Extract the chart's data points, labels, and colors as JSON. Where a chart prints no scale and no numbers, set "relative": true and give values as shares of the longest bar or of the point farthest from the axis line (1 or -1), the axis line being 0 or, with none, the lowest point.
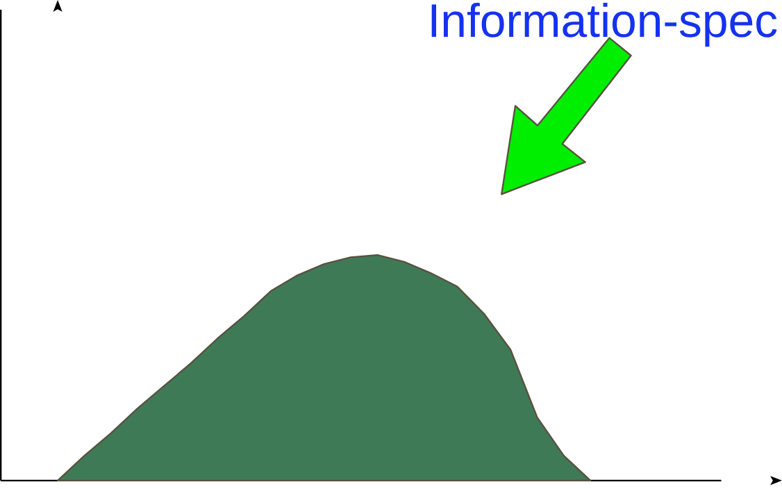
{
  "chart_data": {
    "type": "area",
    "relative": true,
    "categories": [
      null,
      null,
      null,
      null,
      null,
      null,
      null,
      null,
      null,
      null,
      null,
      null,
      null,
      null,
      null,
      null,
      null,
      null,
      null,
      null,
      null
    ],
    "values": [
      0,
      0.11,
      0.21,
      0.32,
      0.42,
      0.52,
      0.63,
      0.73,
      0.84,
      0.91,
      0.96,
      0.99,
      1,
      0.97,
      0.92,
      0.86,
      0.74,
      0.58,
      0.28,
      0.11,
      0
    ],
    "color": "#3f7a56",
    "annotations": [
      "Information-spec"
    ]
  }
}
